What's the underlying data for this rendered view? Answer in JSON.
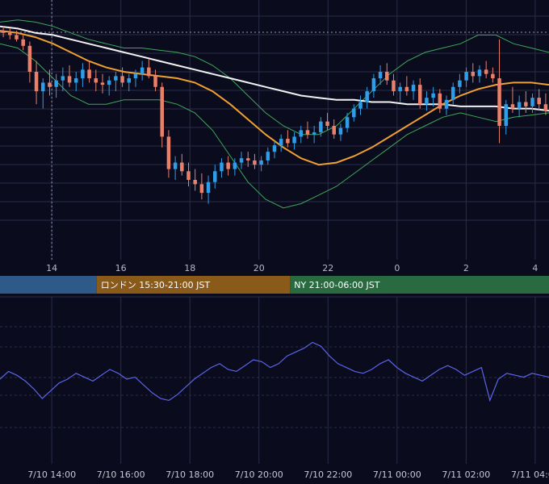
{
  "chart_data": {
    "type": "candlestick",
    "title": "",
    "colors": {
      "background": "#0b0b1e",
      "grid": "#2a2c4a",
      "up_candle": "#2f9ee8",
      "down_candle": "#e8806a",
      "ma_long": "#f2f2f2",
      "ma_short": "#f0a030",
      "bollinger": "#3ea85a",
      "oscillator": "#5a64e8",
      "tokyo_session": "#2e5a8a",
      "london_session": "#8a5a1a",
      "ny_session": "#2a6a40"
    },
    "x_ticks": [
      "14",
      "16",
      "18",
      "20",
      "22",
      "0",
      "2",
      "4"
    ],
    "x_range_hours": [
      12.5,
      28.4
    ],
    "sessions": [
      {
        "name": "",
        "start": 12.5,
        "end": 15.3
      },
      {
        "name": "ロンドン 15:30-21:00 JST",
        "start": 15.3,
        "end": 20.9
      },
      {
        "name": "NY 21:00-06:00 JST",
        "start": 20.9,
        "end": 28.4
      }
    ],
    "bottom_ticks": [
      "7/10 14:00",
      "7/10 16:00",
      "7/10 18:00",
      "7/10 20:00",
      "7/10 22:00",
      "7/11 00:00",
      "7/11 02:00",
      "7/11 04:00"
    ],
    "price_range": [
      0,
      100
    ],
    "oscillator_range": [
      0,
      100
    ],
    "candle_start_hour": 12.5,
    "candle_step_hours": 0.0833,
    "candles": [
      [
        94,
        96,
        91,
        93
      ],
      [
        93,
        95,
        90,
        92
      ],
      [
        92,
        94,
        89,
        90
      ],
      [
        90,
        92,
        85,
        87
      ],
      [
        87,
        89,
        70,
        75
      ],
      [
        75,
        80,
        60,
        66
      ],
      [
        66,
        72,
        58,
        70
      ],
      [
        70,
        76,
        64,
        68
      ],
      [
        68,
        74,
        63,
        71
      ],
      [
        71,
        77,
        66,
        73
      ],
      [
        73,
        78,
        68,
        70
      ],
      [
        70,
        75,
        66,
        72
      ],
      [
        72,
        79,
        68,
        76
      ],
      [
        76,
        80,
        70,
        72
      ],
      [
        72,
        76,
        66,
        70
      ],
      [
        70,
        74,
        65,
        69
      ],
      [
        69,
        73,
        64,
        71
      ],
      [
        71,
        75,
        66,
        73
      ],
      [
        73,
        77,
        68,
        70
      ],
      [
        70,
        74,
        66,
        72
      ],
      [
        72,
        76,
        68,
        74
      ],
      [
        74,
        80,
        71,
        77
      ],
      [
        77,
        81,
        72,
        73
      ],
      [
        73,
        76,
        66,
        68
      ],
      [
        68,
        70,
        40,
        45
      ],
      [
        45,
        48,
        26,
        30
      ],
      [
        30,
        36,
        25,
        33
      ],
      [
        33,
        37,
        27,
        29
      ],
      [
        29,
        33,
        22,
        25
      ],
      [
        25,
        30,
        20,
        23
      ],
      [
        23,
        28,
        16,
        19
      ],
      [
        19,
        27,
        14,
        24
      ],
      [
        24,
        32,
        21,
        29
      ],
      [
        29,
        35,
        26,
        33
      ],
      [
        33,
        36,
        27,
        30
      ],
      [
        30,
        35,
        27,
        33
      ],
      [
        33,
        38,
        30,
        35
      ],
      [
        35,
        38,
        31,
        34
      ],
      [
        34,
        37,
        30,
        32
      ],
      [
        32,
        36,
        29,
        34
      ],
      [
        34,
        40,
        32,
        38
      ],
      [
        38,
        43,
        35,
        41
      ],
      [
        41,
        46,
        38,
        44
      ],
      [
        44,
        48,
        40,
        42
      ],
      [
        42,
        47,
        39,
        45
      ],
      [
        45,
        50,
        42,
        48
      ],
      [
        48,
        52,
        44,
        46
      ],
      [
        46,
        50,
        42,
        47
      ],
      [
        47,
        54,
        45,
        52
      ],
      [
        52,
        56,
        48,
        50
      ],
      [
        50,
        53,
        44,
        46
      ],
      [
        46,
        51,
        43,
        49
      ],
      [
        49,
        56,
        47,
        54
      ],
      [
        54,
        60,
        52,
        58
      ],
      [
        58,
        64,
        55,
        61
      ],
      [
        61,
        68,
        58,
        66
      ],
      [
        66,
        74,
        63,
        72
      ],
      [
        72,
        78,
        69,
        75
      ],
      [
        75,
        79,
        69,
        71
      ],
      [
        71,
        74,
        64,
        66
      ],
      [
        66,
        70,
        61,
        68
      ],
      [
        68,
        73,
        64,
        66
      ],
      [
        66,
        71,
        62,
        69
      ],
      [
        69,
        72,
        58,
        60
      ],
      [
        60,
        66,
        57,
        63
      ],
      [
        63,
        68,
        59,
        65
      ],
      [
        65,
        67,
        56,
        58
      ],
      [
        58,
        64,
        55,
        62
      ],
      [
        62,
        70,
        60,
        68
      ],
      [
        68,
        74,
        65,
        71
      ],
      [
        71,
        77,
        68,
        75
      ],
      [
        75,
        79,
        70,
        73
      ],
      [
        73,
        78,
        70,
        76
      ],
      [
        76,
        80,
        72,
        74
      ],
      [
        74,
        77,
        70,
        72
      ],
      [
        72,
        90,
        42,
        50
      ],
      [
        50,
        62,
        46,
        60
      ],
      [
        60,
        68,
        56,
        58
      ],
      [
        58,
        64,
        54,
        61
      ],
      [
        61,
        66,
        56,
        59
      ],
      [
        59,
        65,
        56,
        63
      ],
      [
        63,
        67,
        57,
        60
      ],
      [
        60,
        65,
        55,
        57
      ]
    ],
    "ma_short": [
      94,
      93,
      91,
      88,
      84,
      80,
      77,
      75,
      74,
      73,
      72,
      70,
      66,
      60,
      53,
      46,
      40,
      35,
      32,
      33,
      36,
      40,
      45,
      50,
      55,
      60,
      64,
      67,
      69,
      70,
      70,
      69
    ],
    "ma_long": [
      96,
      95,
      93,
      92,
      90,
      88,
      86,
      84,
      82,
      80,
      78,
      76,
      74,
      72,
      70,
      68,
      66,
      64,
      63,
      62,
      62,
      61,
      61,
      60,
      60,
      60,
      59,
      59,
      59,
      58,
      58,
      57
    ],
    "bb_upper": [
      98,
      99,
      98,
      96,
      93,
      90,
      88,
      86,
      86,
      85,
      84,
      82,
      78,
      72,
      64,
      56,
      50,
      46,
      46,
      50,
      58,
      66,
      74,
      80,
      84,
      86,
      88,
      92,
      92,
      88,
      86,
      84
    ],
    "bb_lower": [
      88,
      86,
      80,
      72,
      64,
      60,
      60,
      62,
      62,
      62,
      60,
      56,
      48,
      36,
      24,
      16,
      12,
      14,
      18,
      22,
      28,
      34,
      40,
      46,
      50,
      54,
      56,
      54,
      52,
      54,
      55,
      56
    ],
    "oscillator": [
      50,
      58,
      54,
      48,
      40,
      30,
      38,
      46,
      50,
      56,
      52,
      48,
      54,
      60,
      56,
      50,
      52,
      44,
      36,
      30,
      28,
      34,
      42,
      50,
      56,
      62,
      66,
      60,
      58,
      64,
      70,
      68,
      62,
      66,
      74,
      78,
      82,
      88,
      84,
      74,
      66,
      62,
      58,
      56,
      60,
      66,
      70,
      62,
      56,
      52,
      48,
      54,
      60,
      64,
      60,
      54,
      58,
      62,
      28,
      50,
      56,
      54,
      52,
      56,
      54,
      52
    ]
  }
}
